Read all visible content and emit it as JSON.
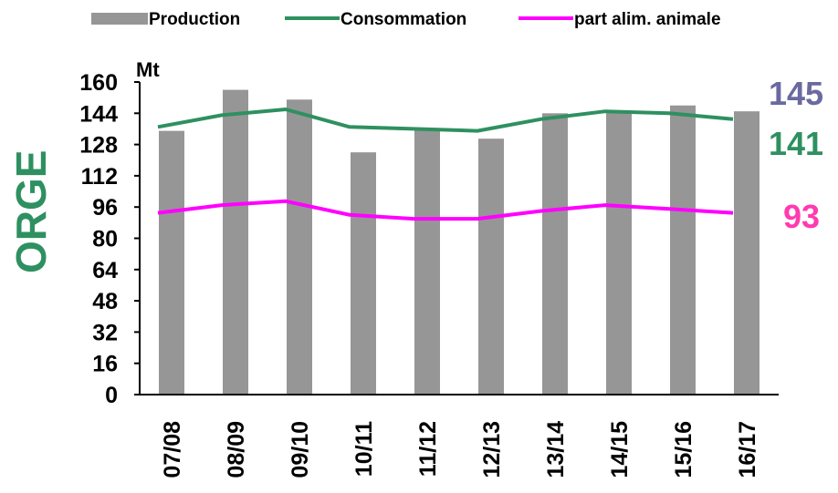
{
  "chart_data": {
    "type": "bar",
    "side_title": "ORGE",
    "unit_label": "Mt",
    "categories": [
      "07/08",
      "08/09",
      "09/10",
      "10/11",
      "11/12",
      "12/13",
      "13/14",
      "14/15",
      "15/16",
      "16/17"
    ],
    "ylim": [
      0,
      160
    ],
    "yticks": [
      0,
      16,
      32,
      48,
      64,
      80,
      96,
      112,
      128,
      144,
      160
    ],
    "grid": false,
    "legend_position": "top",
    "series": [
      {
        "name": "Production",
        "type": "bar",
        "color": "#969696",
        "values": [
          135,
          156,
          151,
          124,
          136,
          131,
          144,
          145,
          148,
          145
        ]
      },
      {
        "name": "Consommation",
        "type": "line",
        "color": "#2e9060",
        "values": [
          137,
          143,
          146,
          137,
          136,
          135,
          141,
          145,
          144,
          141
        ]
      },
      {
        "name": "part alim. animale",
        "type": "line",
        "color": "#ff00ff",
        "values": [
          93,
          97,
          99,
          92,
          90,
          90,
          94,
          97,
          95,
          93
        ]
      }
    ],
    "annotations": [
      {
        "text": "145",
        "color": "#6a6aa0"
      },
      {
        "text": "141",
        "color": "#2e9060"
      },
      {
        "text": "93",
        "color": "#ff3bb0"
      }
    ]
  }
}
